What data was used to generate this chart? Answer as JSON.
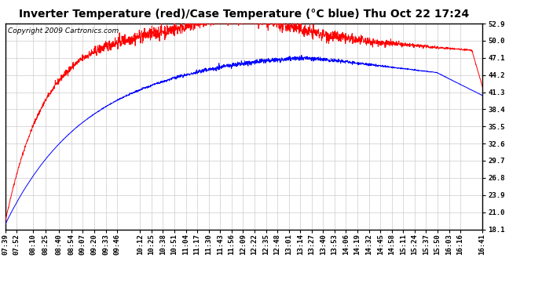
{
  "title": "Inverter Temperature (red)/Case Temperature (°C blue) Thu Oct 22 17:24",
  "copyright": "Copyright 2009 Cartronics.com",
  "yticks": [
    18.1,
    21.0,
    23.9,
    26.8,
    29.7,
    32.6,
    35.5,
    38.4,
    41.3,
    44.2,
    47.1,
    50.0,
    52.9
  ],
  "ymin": 18.1,
  "ymax": 52.9,
  "background_color": "#ffffff",
  "plot_bg_color": "#ffffff",
  "grid_color": "#cccccc",
  "red_color": "#ff0000",
  "blue_color": "#0000ff",
  "title_fontsize": 10,
  "copyright_fontsize": 6.5,
  "tick_fontsize": 6.5,
  "xtick_labels": [
    "07:39",
    "07:52",
    "08:10",
    "08:25",
    "08:40",
    "08:54",
    "09:07",
    "09:20",
    "09:33",
    "09:46",
    "10:12",
    "10:25",
    "10:38",
    "10:51",
    "11:04",
    "11:17",
    "11:30",
    "11:43",
    "11:56",
    "12:09",
    "12:22",
    "12:35",
    "12:48",
    "13:01",
    "13:14",
    "13:27",
    "13:40",
    "13:53",
    "14:06",
    "14:19",
    "14:32",
    "14:45",
    "14:58",
    "15:11",
    "15:24",
    "15:37",
    "15:50",
    "16:03",
    "16:16",
    "16:41"
  ]
}
